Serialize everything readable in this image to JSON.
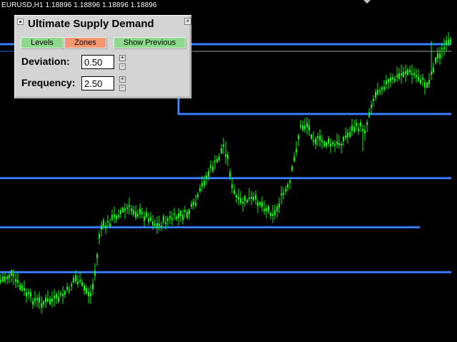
{
  "chart": {
    "symbol_header": "EURUSD,H1  1.18896 1.18896 1.18896 1.18896",
    "background_color": "#000000",
    "candle_color": "#00ff00",
    "level_color": "#1f6cff",
    "level_inner_color": "#ffffff",
    "close_price_color": "#a0a0a0"
  },
  "panel": {
    "title": "Ultimate Supply Demand",
    "move_icon": "move-handle-icon",
    "close_icon": "close-icon",
    "close_glyph": "×",
    "buttons": {
      "levels": "Levels",
      "zones": "Zones",
      "show_previous": "Show Previous"
    },
    "button_colors": {
      "active_green": "#8fd98f",
      "active_orange": "#f7976f"
    },
    "deviation": {
      "label": "Deviation:",
      "value": "0.50",
      "plus": "+",
      "minus": "-"
    },
    "frequency": {
      "label": "Frequency:",
      "value": "2.50",
      "plus": "+",
      "minus": "-"
    }
  }
}
